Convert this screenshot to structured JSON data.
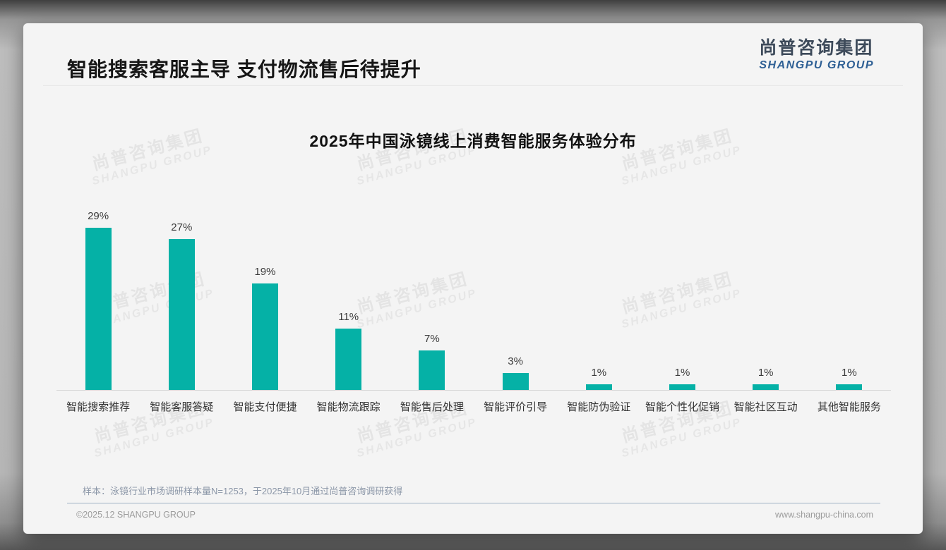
{
  "page": {
    "title": "智能搜索客服主导 支付物流售后待提升",
    "logo": {
      "cn": "尚普咨询集团",
      "en": "SHANGPU GROUP"
    },
    "watermark": {
      "cn": "尚普咨询集团",
      "en": "SHANGPU GROUP"
    },
    "note": "样本：泳镜行业市场调研样本量N=1253，于2025年10月通过尚普咨询调研获得",
    "footer": {
      "copyright": "©2025.12 SHANGPU GROUP",
      "website": "www.shangpu-china.com"
    }
  },
  "colors": {
    "bar": "#05b1a6",
    "logo_cn": "#3d4a5a",
    "logo_en": "#2f6095",
    "footer_divider": "#9fb2c5",
    "card_background": "#f4f4f4"
  },
  "chart_data": {
    "type": "bar",
    "title": "2025年中国泳镜线上消费智能服务体验分布",
    "categories": [
      "智能搜索推荐",
      "智能客服答疑",
      "智能支付便捷",
      "智能物流跟踪",
      "智能售后处理",
      "智能评价引导",
      "智能防伪验证",
      "智能个性化促销",
      "智能社区互动",
      "其他智能服务"
    ],
    "values": [
      29,
      27,
      19,
      11,
      7,
      3,
      1,
      1,
      1,
      1
    ],
    "value_labels": [
      "29%",
      "27%",
      "19%",
      "11%",
      "7%",
      "3%",
      "1%",
      "1%",
      "1%",
      "1%"
    ],
    "xlabel": "",
    "ylabel": "",
    "ylim": [
      0,
      32
    ],
    "grid": false,
    "legend": false,
    "bar_color": "#05b1a6"
  }
}
